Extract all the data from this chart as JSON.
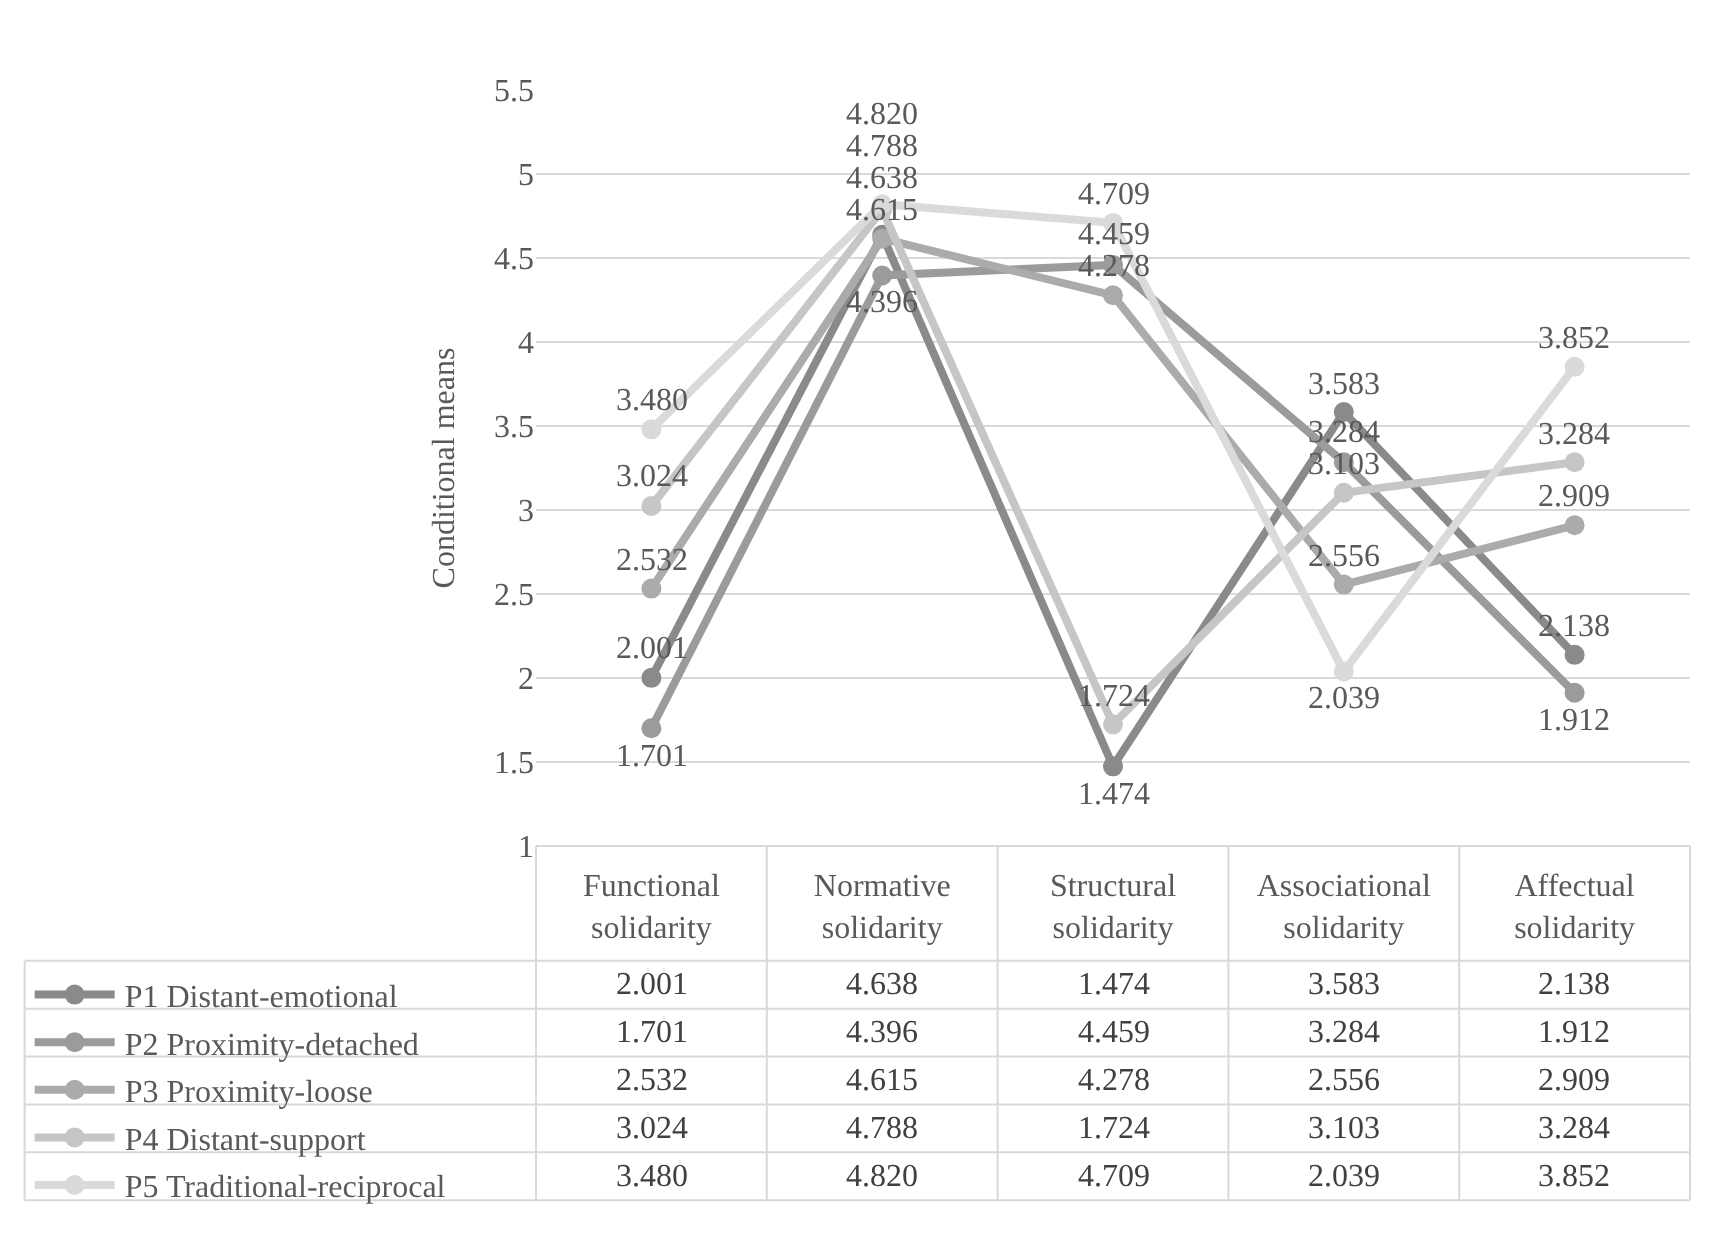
{
  "chart_data": {
    "type": "line",
    "ylabel": "Conditional means",
    "categories": [
      "Functional solidarity",
      "Normative solidarity",
      "Structural solidarity",
      "Associational solidarity",
      "Affectual solidarity"
    ],
    "series": [
      {
        "name": "P1 Distant-emotional",
        "color": "#8a8a8c",
        "values": [
          2.001,
          4.638,
          1.474,
          3.583,
          2.138
        ],
        "value_labels": [
          "2.001",
          "4.638",
          "1.474",
          "3.583",
          "2.138"
        ]
      },
      {
        "name": "P2 Proximity-detached",
        "color": "#9b9b9d",
        "values": [
          1.701,
          4.396,
          4.459,
          3.284,
          1.912
        ],
        "value_labels": [
          "1.701",
          "4.396",
          "4.459",
          "3.284",
          "1.912"
        ]
      },
      {
        "name": "P3 Proximity-loose",
        "color": "#ababad",
        "values": [
          2.532,
          4.615,
          4.278,
          2.556,
          2.909
        ],
        "value_labels": [
          "2.532",
          "4.615",
          "4.278",
          "2.556",
          "2.909"
        ]
      },
      {
        "name": "P4 Distant-support",
        "color": "#c6c6c6",
        "values": [
          3.024,
          4.788,
          1.724,
          3.103,
          3.284
        ],
        "value_labels": [
          "3.024",
          "4.788",
          "1.724",
          "3.103",
          "3.284"
        ]
      },
      {
        "name": "P5 Traditional-reciprocal",
        "color": "#dadada",
        "values": [
          3.48,
          4.82,
          4.709,
          2.039,
          3.852
        ],
        "value_labels": [
          "3.480",
          "4.820",
          "4.709",
          "2.039",
          "3.852"
        ]
      }
    ],
    "ylim": [
      1,
      5.5
    ],
    "yticks": [
      1,
      1.5,
      2,
      2.5,
      3,
      3.5,
      4,
      4.5,
      5,
      5.5
    ],
    "grid": "y",
    "legend": "bottom left",
    "marker": "circle",
    "line_style": "solid"
  }
}
